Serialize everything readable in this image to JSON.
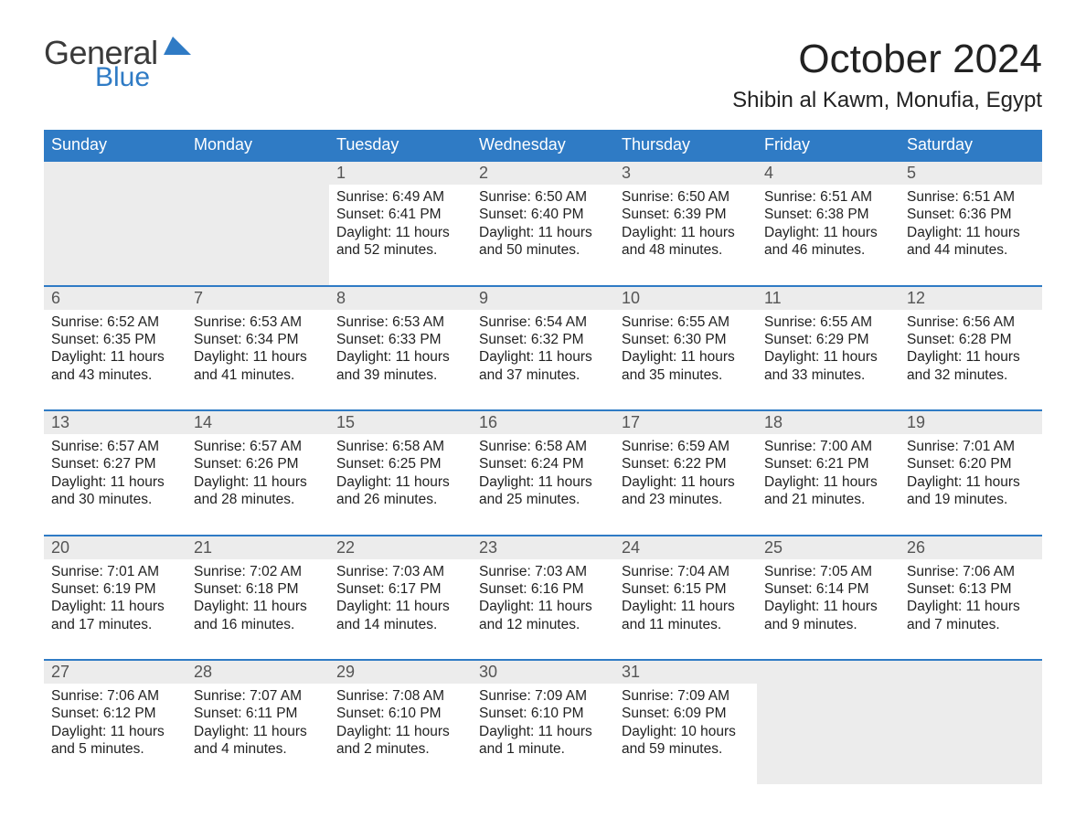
{
  "logo": {
    "general": "General",
    "blue": "Blue"
  },
  "title": "October 2024",
  "location": "Shibin al Kawm, Monufia, Egypt",
  "colors": {
    "header_bg": "#2f7bc5",
    "daynum_bg": "#ececec",
    "rule": "#2f7bc5"
  },
  "days_of_week": [
    "Sunday",
    "Monday",
    "Tuesday",
    "Wednesday",
    "Thursday",
    "Friday",
    "Saturday"
  ],
  "weeks": [
    [
      null,
      null,
      {
        "n": "1",
        "sr": "Sunrise: 6:49 AM",
        "ss": "Sunset: 6:41 PM",
        "dl1": "Daylight: 11 hours",
        "dl2": "and 52 minutes."
      },
      {
        "n": "2",
        "sr": "Sunrise: 6:50 AM",
        "ss": "Sunset: 6:40 PM",
        "dl1": "Daylight: 11 hours",
        "dl2": "and 50 minutes."
      },
      {
        "n": "3",
        "sr": "Sunrise: 6:50 AM",
        "ss": "Sunset: 6:39 PM",
        "dl1": "Daylight: 11 hours",
        "dl2": "and 48 minutes."
      },
      {
        "n": "4",
        "sr": "Sunrise: 6:51 AM",
        "ss": "Sunset: 6:38 PM",
        "dl1": "Daylight: 11 hours",
        "dl2": "and 46 minutes."
      },
      {
        "n": "5",
        "sr": "Sunrise: 6:51 AM",
        "ss": "Sunset: 6:36 PM",
        "dl1": "Daylight: 11 hours",
        "dl2": "and 44 minutes."
      }
    ],
    [
      {
        "n": "6",
        "sr": "Sunrise: 6:52 AM",
        "ss": "Sunset: 6:35 PM",
        "dl1": "Daylight: 11 hours",
        "dl2": "and 43 minutes."
      },
      {
        "n": "7",
        "sr": "Sunrise: 6:53 AM",
        "ss": "Sunset: 6:34 PM",
        "dl1": "Daylight: 11 hours",
        "dl2": "and 41 minutes."
      },
      {
        "n": "8",
        "sr": "Sunrise: 6:53 AM",
        "ss": "Sunset: 6:33 PM",
        "dl1": "Daylight: 11 hours",
        "dl2": "and 39 minutes."
      },
      {
        "n": "9",
        "sr": "Sunrise: 6:54 AM",
        "ss": "Sunset: 6:32 PM",
        "dl1": "Daylight: 11 hours",
        "dl2": "and 37 minutes."
      },
      {
        "n": "10",
        "sr": "Sunrise: 6:55 AM",
        "ss": "Sunset: 6:30 PM",
        "dl1": "Daylight: 11 hours",
        "dl2": "and 35 minutes."
      },
      {
        "n": "11",
        "sr": "Sunrise: 6:55 AM",
        "ss": "Sunset: 6:29 PM",
        "dl1": "Daylight: 11 hours",
        "dl2": "and 33 minutes."
      },
      {
        "n": "12",
        "sr": "Sunrise: 6:56 AM",
        "ss": "Sunset: 6:28 PM",
        "dl1": "Daylight: 11 hours",
        "dl2": "and 32 minutes."
      }
    ],
    [
      {
        "n": "13",
        "sr": "Sunrise: 6:57 AM",
        "ss": "Sunset: 6:27 PM",
        "dl1": "Daylight: 11 hours",
        "dl2": "and 30 minutes."
      },
      {
        "n": "14",
        "sr": "Sunrise: 6:57 AM",
        "ss": "Sunset: 6:26 PM",
        "dl1": "Daylight: 11 hours",
        "dl2": "and 28 minutes."
      },
      {
        "n": "15",
        "sr": "Sunrise: 6:58 AM",
        "ss": "Sunset: 6:25 PM",
        "dl1": "Daylight: 11 hours",
        "dl2": "and 26 minutes."
      },
      {
        "n": "16",
        "sr": "Sunrise: 6:58 AM",
        "ss": "Sunset: 6:24 PM",
        "dl1": "Daylight: 11 hours",
        "dl2": "and 25 minutes."
      },
      {
        "n": "17",
        "sr": "Sunrise: 6:59 AM",
        "ss": "Sunset: 6:22 PM",
        "dl1": "Daylight: 11 hours",
        "dl2": "and 23 minutes."
      },
      {
        "n": "18",
        "sr": "Sunrise: 7:00 AM",
        "ss": "Sunset: 6:21 PM",
        "dl1": "Daylight: 11 hours",
        "dl2": "and 21 minutes."
      },
      {
        "n": "19",
        "sr": "Sunrise: 7:01 AM",
        "ss": "Sunset: 6:20 PM",
        "dl1": "Daylight: 11 hours",
        "dl2": "and 19 minutes."
      }
    ],
    [
      {
        "n": "20",
        "sr": "Sunrise: 7:01 AM",
        "ss": "Sunset: 6:19 PM",
        "dl1": "Daylight: 11 hours",
        "dl2": "and 17 minutes."
      },
      {
        "n": "21",
        "sr": "Sunrise: 7:02 AM",
        "ss": "Sunset: 6:18 PM",
        "dl1": "Daylight: 11 hours",
        "dl2": "and 16 minutes."
      },
      {
        "n": "22",
        "sr": "Sunrise: 7:03 AM",
        "ss": "Sunset: 6:17 PM",
        "dl1": "Daylight: 11 hours",
        "dl2": "and 14 minutes."
      },
      {
        "n": "23",
        "sr": "Sunrise: 7:03 AM",
        "ss": "Sunset: 6:16 PM",
        "dl1": "Daylight: 11 hours",
        "dl2": "and 12 minutes."
      },
      {
        "n": "24",
        "sr": "Sunrise: 7:04 AM",
        "ss": "Sunset: 6:15 PM",
        "dl1": "Daylight: 11 hours",
        "dl2": "and 11 minutes."
      },
      {
        "n": "25",
        "sr": "Sunrise: 7:05 AM",
        "ss": "Sunset: 6:14 PM",
        "dl1": "Daylight: 11 hours",
        "dl2": "and 9 minutes."
      },
      {
        "n": "26",
        "sr": "Sunrise: 7:06 AM",
        "ss": "Sunset: 6:13 PM",
        "dl1": "Daylight: 11 hours",
        "dl2": "and 7 minutes."
      }
    ],
    [
      {
        "n": "27",
        "sr": "Sunrise: 7:06 AM",
        "ss": "Sunset: 6:12 PM",
        "dl1": "Daylight: 11 hours",
        "dl2": "and 5 minutes."
      },
      {
        "n": "28",
        "sr": "Sunrise: 7:07 AM",
        "ss": "Sunset: 6:11 PM",
        "dl1": "Daylight: 11 hours",
        "dl2": "and 4 minutes."
      },
      {
        "n": "29",
        "sr": "Sunrise: 7:08 AM",
        "ss": "Sunset: 6:10 PM",
        "dl1": "Daylight: 11 hours",
        "dl2": "and 2 minutes."
      },
      {
        "n": "30",
        "sr": "Sunrise: 7:09 AM",
        "ss": "Sunset: 6:10 PM",
        "dl1": "Daylight: 11 hours",
        "dl2": "and 1 minute."
      },
      {
        "n": "31",
        "sr": "Sunrise: 7:09 AM",
        "ss": "Sunset: 6:09 PM",
        "dl1": "Daylight: 10 hours",
        "dl2": "and 59 minutes."
      },
      null,
      null
    ]
  ]
}
